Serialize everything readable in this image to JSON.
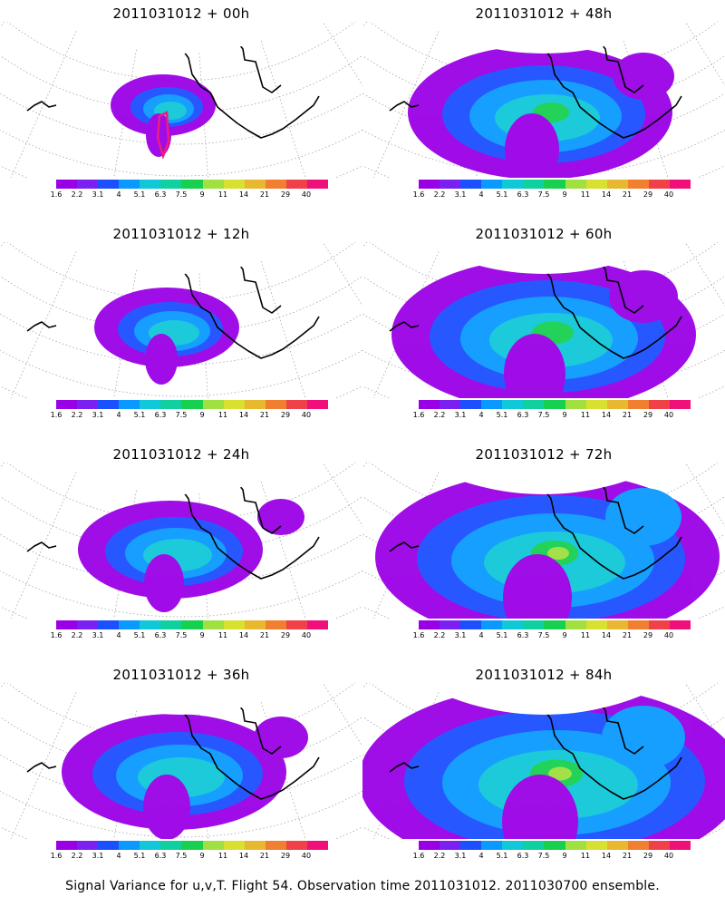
{
  "figure": {
    "caption": "Signal Variance for u,v,T. Flight 54. Observation time 2011031012. 2011030700 ensemble.",
    "panels": [
      {
        "title": "2011031012 + 00h",
        "spread": 0
      },
      {
        "title": "2011031012 + 48h",
        "spread": 4
      },
      {
        "title": "2011031012 + 12h",
        "spread": 1
      },
      {
        "title": "2011031012 + 60h",
        "spread": 5
      },
      {
        "title": "2011031012 + 24h",
        "spread": 2
      },
      {
        "title": "2011031012 + 72h",
        "spread": 6
      },
      {
        "title": "2011031012 + 36h",
        "spread": 3
      },
      {
        "title": "2011031012 + 84h",
        "spread": 7
      }
    ],
    "colorbar": {
      "labels": [
        "1.6",
        "2.2",
        "3.1",
        "4",
        "5.1",
        "6.3",
        "7.5",
        "9",
        "11",
        "14",
        "21",
        "29",
        "40"
      ],
      "colors": [
        "#9a00e6",
        "#7a20f0",
        "#1c50ff",
        "#0a9aff",
        "#10c8d8",
        "#10d0a0",
        "#18d050",
        "#a0e040",
        "#d8e030",
        "#e8b830",
        "#f08030",
        "#f04048",
        "#f0107a"
      ]
    }
  }
}
